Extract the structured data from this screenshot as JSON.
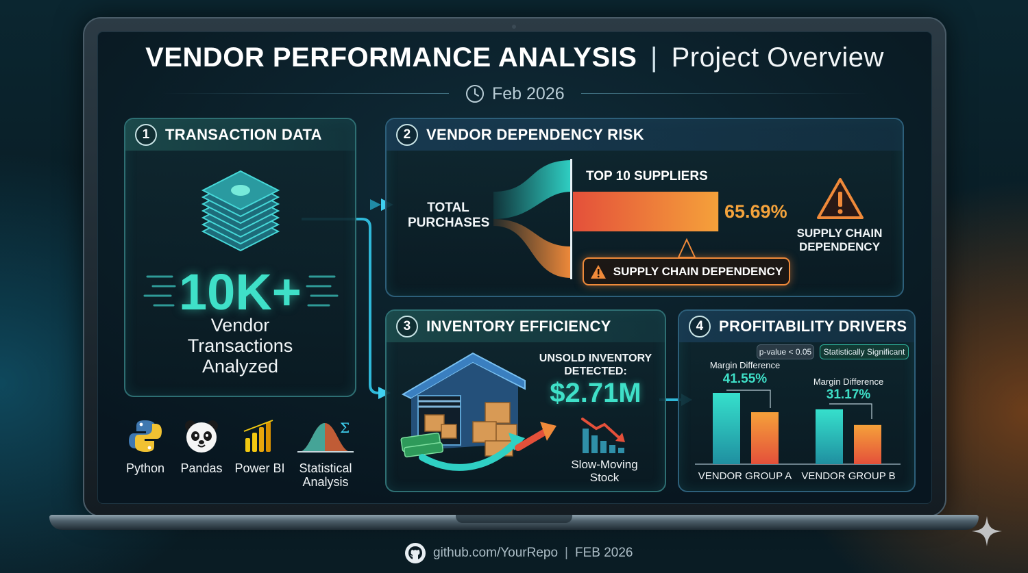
{
  "header": {
    "title_main": "VENDOR PERFORMANCE ANALYSIS",
    "title_sep": "|",
    "title_sub": "Project Overview",
    "date": "Feb 2026",
    "date_icon": "clock-icon"
  },
  "panel1": {
    "number": "1",
    "title": "TRANSACTION DATA",
    "icon": "stacked-cash-icon",
    "stat_value": "10K+",
    "stat_caption": [
      "Vendor",
      "Transactions",
      "Analyzed"
    ]
  },
  "tools": [
    {
      "label": "Python",
      "icon": "python-icon"
    },
    {
      "label": "Pandas",
      "icon": "panda-icon"
    },
    {
      "label": "Power BI",
      "icon": "powerbi-icon"
    },
    {
      "label": "Statistical",
      "label2": "Analysis",
      "icon": "bell-curve-icon"
    }
  ],
  "panel2": {
    "number": "2",
    "title": "VENDOR DEPENDENCY RISK",
    "total_label": [
      "TOTAL",
      "PURCHASES"
    ],
    "top_label": "TOP 10 SUPPLIERS",
    "top_share_pct": 65.69,
    "top_share_text": "65.69%",
    "risk_icon": "warning-triangle-icon",
    "risk_label": [
      "SUPPLY CHAIN",
      "DEPENDENCY"
    ],
    "callout": "SUPPLY CHAIN DEPENDENCY",
    "colors": {
      "teal": "#2fd0c4",
      "orange": "#f08a3a"
    }
  },
  "panel3": {
    "number": "3",
    "title": "INVENTORY EFFICIENCY",
    "icon": "warehouse-icon",
    "unsold_label": [
      "UNSOLD INVENTORY",
      "DETECTED:"
    ],
    "unsold_value": "$2.71M",
    "slow_icon": "declining-bars-icon",
    "slow_label": [
      "Slow-Moving",
      "Stock"
    ]
  },
  "panel4": {
    "number": "4",
    "title": "PROFITABILITY DRIVERS",
    "pvalue": "p-value < 0.05",
    "significance": "Statistically Significant",
    "group_a": {
      "label": "VENDOR GROUP A",
      "margin_label": "Margin Difference",
      "margin_value": "41.55%",
      "bars": [
        1.0,
        0.73
      ]
    },
    "group_b": {
      "label": "VENDOR GROUP B",
      "margin_label": "Margin Difference",
      "margin_value": "31.17%",
      "bars": [
        0.77,
        0.55
      ]
    }
  },
  "footer": {
    "icon": "github-icon",
    "repo": "github.com/YourRepo",
    "sep": "|",
    "date": "FEB 2026"
  }
}
